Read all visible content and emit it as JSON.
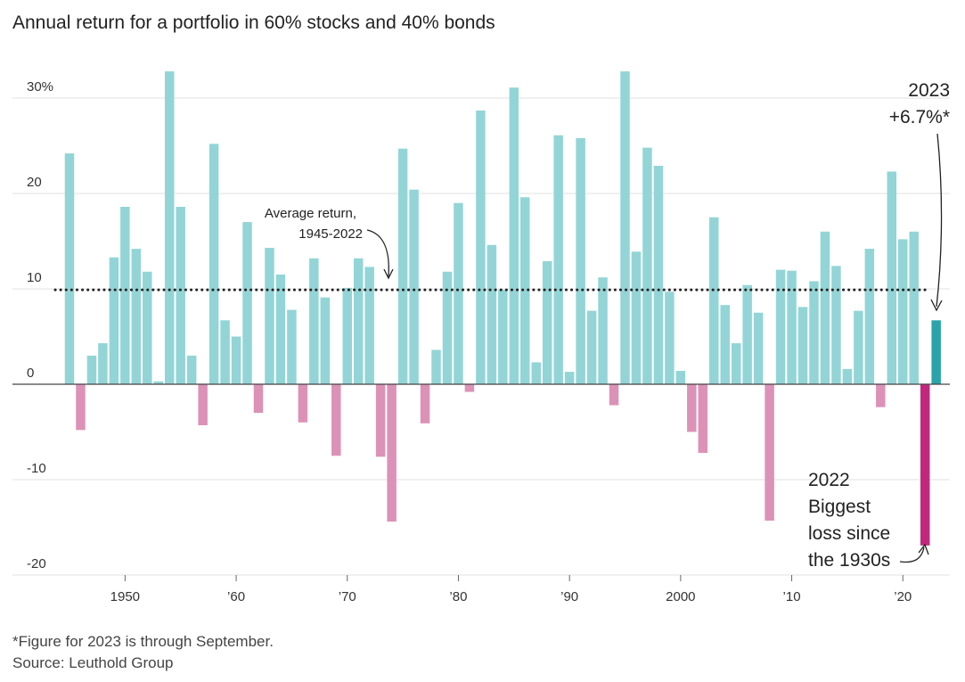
{
  "title": "Annual return for a portfolio in 60% stocks and 40% bonds",
  "footnote": "*Figure for 2023 is through September.",
  "source": "Source: Leuthold Group",
  "colors": {
    "positive": "#93d5d6",
    "negative": "#dc92b6",
    "highlight_positive": "#2aa4aa",
    "highlight_negative": "#c2287a",
    "average_line": "#222222",
    "grid": "#e2e2e2"
  },
  "chart_data": {
    "type": "bar",
    "title": "Annual return for a portfolio in 60% stocks and 40% bonds",
    "xlabel": "",
    "ylabel": "",
    "ylim": [
      -20,
      30
    ],
    "xlim": [
      1945,
      2023
    ],
    "grid": true,
    "y_ticks": [
      {
        "value": 30,
        "label": "30%"
      },
      {
        "value": 20,
        "label": "20"
      },
      {
        "value": 10,
        "label": "10"
      },
      {
        "value": 0,
        "label": "0"
      },
      {
        "value": -10,
        "label": "-10"
      },
      {
        "value": -20,
        "label": "-20"
      }
    ],
    "x_ticks": [
      {
        "value": 1950,
        "label": "1950"
      },
      {
        "value": 1960,
        "label": "’60"
      },
      {
        "value": 1970,
        "label": "’70"
      },
      {
        "value": 1980,
        "label": "’80"
      },
      {
        "value": 1990,
        "label": "’90"
      },
      {
        "value": 2000,
        "label": "2000"
      },
      {
        "value": 2010,
        "label": "’10"
      },
      {
        "value": 2020,
        "label": "’20"
      }
    ],
    "years": [
      1945,
      1946,
      1947,
      1948,
      1949,
      1950,
      1951,
      1952,
      1953,
      1954,
      1955,
      1956,
      1957,
      1958,
      1959,
      1960,
      1961,
      1962,
      1963,
      1964,
      1965,
      1966,
      1967,
      1968,
      1969,
      1970,
      1971,
      1972,
      1973,
      1974,
      1975,
      1976,
      1977,
      1978,
      1979,
      1980,
      1981,
      1982,
      1983,
      1984,
      1985,
      1986,
      1987,
      1988,
      1989,
      1990,
      1991,
      1992,
      1993,
      1994,
      1995,
      1996,
      1997,
      1998,
      1999,
      2000,
      2001,
      2002,
      2003,
      2004,
      2005,
      2006,
      2007,
      2008,
      2009,
      2010,
      2011,
      2012,
      2013,
      2014,
      2015,
      2016,
      2017,
      2018,
      2019,
      2020,
      2021,
      2022,
      2023
    ],
    "values": [
      24.2,
      -4.8,
      3.0,
      4.3,
      13.3,
      18.6,
      14.2,
      11.8,
      0.3,
      32.8,
      18.6,
      3.0,
      -4.3,
      25.2,
      6.7,
      5.0,
      17.0,
      -3.0,
      14.3,
      11.5,
      7.8,
      -4.0,
      13.2,
      9.1,
      -7.5,
      10.1,
      13.2,
      12.3,
      -7.6,
      -14.4,
      24.7,
      20.4,
      -4.1,
      3.6,
      11.8,
      19.0,
      -0.8,
      28.7,
      14.6,
      9.9,
      31.1,
      19.6,
      2.3,
      12.9,
      26.1,
      1.3,
      25.8,
      7.7,
      11.2,
      -2.2,
      32.8,
      13.9,
      24.8,
      22.9,
      9.7,
      1.4,
      -5.0,
      -7.2,
      17.5,
      8.3,
      4.3,
      10.4,
      7.5,
      -14.3,
      12.0,
      11.9,
      8.1,
      10.8,
      16.0,
      12.4,
      1.6,
      7.7,
      14.2,
      -2.4,
      22.3,
      15.2,
      16.0,
      -16.9,
      6.7
    ],
    "average_return": 9.9,
    "highlight_years": [
      2022,
      2023
    ]
  },
  "annotations": {
    "average_line1": "Average return,",
    "average_line2": "1945-2022",
    "y2023_line1": "2023",
    "y2023_line2": "+6.7%*",
    "y2022_line1": "2022",
    "y2022_line2": "Biggest",
    "y2022_line3": "loss since",
    "y2022_line4": "the 1930s"
  }
}
